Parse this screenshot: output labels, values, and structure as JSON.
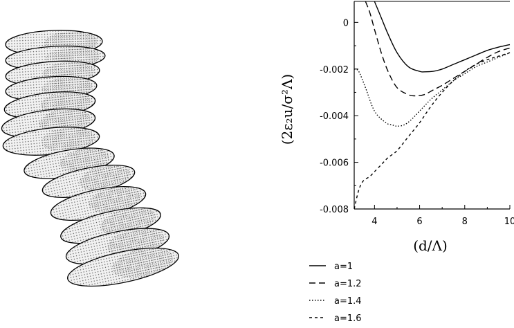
{
  "chart_data": {
    "type": "line",
    "xlabel": "(d/Λ)",
    "ylabel": "(2ε₂u/σ²Λ)",
    "xlim": [
      3.1,
      10
    ],
    "ylim": [
      -0.008,
      0.0009
    ],
    "x_ticks": [
      4,
      6,
      8,
      10
    ],
    "x_tick_labels": [
      "4",
      "6",
      "8",
      "10"
    ],
    "y_ticks": [
      0,
      -0.002,
      -0.004,
      -0.006,
      -0.008
    ],
    "y_tick_labels": [
      "0",
      "-0.002",
      "-0.004",
      "-0.006",
      "-0.008"
    ],
    "grid": false,
    "legend_position": "below-left",
    "series": [
      {
        "name": "a=1",
        "dash": "solid",
        "color": "#000000",
        "x": [
          4.0,
          4.3,
          4.6,
          5.0,
          5.5,
          6.0,
          6.2,
          6.6,
          7.0,
          7.5,
          8.0,
          8.5,
          9.0,
          9.5,
          10.0
        ],
        "y": [
          0.0009,
          0.0002,
          -0.0005,
          -0.0013,
          -0.0019,
          -0.0021,
          -0.00212,
          -0.0021,
          -0.002,
          -0.0018,
          -0.0016,
          -0.0014,
          -0.0012,
          -0.00106,
          -0.00095
        ]
      },
      {
        "name": "a=1.2",
        "dash": "dashed",
        "color": "#000000",
        "x": [
          3.6,
          3.8,
          4.0,
          4.3,
          4.6,
          5.0,
          5.5,
          5.8,
          6.2,
          6.6,
          7.0,
          7.5,
          8.0,
          8.5,
          9.0,
          9.5,
          10.0
        ],
        "y": [
          0.0009,
          0.0004,
          -0.0003,
          -0.0013,
          -0.0021,
          -0.0028,
          -0.0031,
          -0.00315,
          -0.0031,
          -0.0029,
          -0.0027,
          -0.0024,
          -0.0021,
          -0.0018,
          -0.0015,
          -0.00125,
          -0.0011
        ]
      },
      {
        "name": "a=1.4",
        "dash": "dotted",
        "color": "#000000",
        "x": [
          3.1,
          3.3,
          3.6,
          4.0,
          4.5,
          4.8,
          5.0,
          5.3,
          5.6,
          6.0,
          6.5,
          7.0,
          7.5,
          8.0,
          8.5,
          9.0,
          9.5,
          10.0
        ],
        "y": [
          -0.002,
          -0.0021,
          -0.0028,
          -0.0038,
          -0.0043,
          -0.0044,
          -0.00445,
          -0.0044,
          -0.0042,
          -0.0038,
          -0.0033,
          -0.0029,
          -0.0025,
          -0.0022,
          -0.0019,
          -0.0017,
          -0.0015,
          -0.0013
        ]
      },
      {
        "name": "a=1.6",
        "dash": "dashdot",
        "color": "#000000",
        "x": [
          3.1,
          3.3,
          3.5,
          3.8,
          4.0,
          4.3,
          4.6,
          5.0,
          5.5,
          6.0,
          6.5,
          7.0,
          7.5,
          8.0,
          8.5,
          9.0,
          9.5,
          10.0
        ],
        "y": [
          -0.008,
          -0.0072,
          -0.0068,
          -0.0066,
          -0.0064,
          -0.0061,
          -0.0058,
          -0.0055,
          -0.0049,
          -0.0043,
          -0.0036,
          -0.003,
          -0.0025,
          -0.0021,
          -0.0018,
          -0.0016,
          -0.00145,
          -0.0013
        ]
      }
    ]
  },
  "colors": {
    "ellipse_fill": "#f2f2f2",
    "ellipse_stroke": "#000000",
    "stipple": "#444444",
    "ink": "#000000"
  }
}
